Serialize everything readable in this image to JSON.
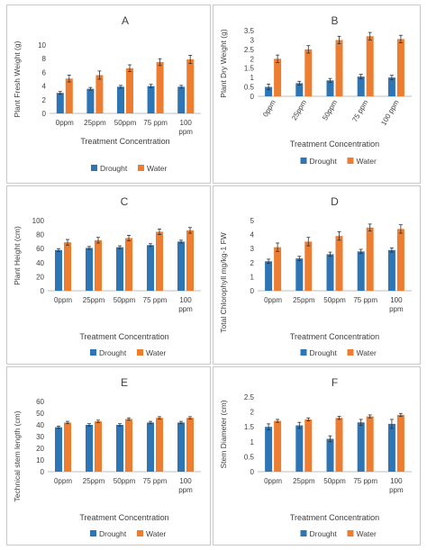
{
  "legend": {
    "drought_label": "Drought",
    "water_label": "Water"
  },
  "colors": {
    "drought": "#2E75B6",
    "water": "#ED7D31",
    "axis": "#bfbfbf",
    "text": "#404040"
  },
  "chart_data": [
    {
      "type": "bar",
      "title": "A",
      "categories": [
        "0ppm",
        "25ppm",
        "50ppm",
        "75 ppm",
        "100 ppm"
      ],
      "xlabel": "Treatment Concentration",
      "ylabel": "Plant Fresh Weight (g)",
      "ylim": [
        0,
        10
      ],
      "yticks": [
        0,
        2,
        4,
        6,
        8,
        10
      ],
      "grid": false,
      "legend_position": "bottom",
      "series": [
        {
          "name": "Drought",
          "values": [
            3.0,
            3.6,
            3.9,
            4.0,
            3.9
          ],
          "errors": [
            0.2,
            0.2,
            0.2,
            0.25,
            0.2
          ]
        },
        {
          "name": "Water",
          "values": [
            5.1,
            5.6,
            6.6,
            7.5,
            7.9
          ],
          "errors": [
            0.5,
            0.6,
            0.5,
            0.5,
            0.6
          ]
        }
      ]
    },
    {
      "type": "bar",
      "title": "B",
      "categories": [
        "0ppm",
        "25ppm",
        "50ppm",
        "75 ppm",
        "100 ppm"
      ],
      "xlabel": "Treatment Concentration",
      "ylabel": "Plant Dry Weight (g)",
      "ylim": [
        0,
        3.5
      ],
      "yticks": [
        0,
        0.5,
        1.0,
        1.5,
        2.0,
        2.5,
        3.0,
        3.5
      ],
      "grid": false,
      "legend_position": "bottom",
      "series": [
        {
          "name": "Drought",
          "values": [
            0.5,
            0.7,
            0.85,
            1.05,
            1.0
          ],
          "errors": [
            0.15,
            0.1,
            0.1,
            0.12,
            0.12
          ]
        },
        {
          "name": "Water",
          "values": [
            2.0,
            2.5,
            3.0,
            3.2,
            3.05
          ],
          "errors": [
            0.2,
            0.2,
            0.2,
            0.2,
            0.2
          ]
        }
      ]
    },
    {
      "type": "bar",
      "title": "C",
      "categories": [
        "0ppm",
        "25ppm",
        "50ppm",
        "75 ppm",
        "100 ppm"
      ],
      "xlabel": "Treatment Concentration",
      "ylabel": "Plant Height (cm)",
      "ylim": [
        0,
        100
      ],
      "yticks": [
        0,
        20,
        40,
        60,
        80,
        100
      ],
      "grid": false,
      "legend_position": "bottom",
      "series": [
        {
          "name": "Drought",
          "values": [
            58,
            61,
            62,
            65,
            70
          ],
          "errors": [
            2,
            2,
            2,
            2,
            2
          ]
        },
        {
          "name": "Water",
          "values": [
            69,
            72,
            75,
            84,
            86
          ],
          "errors": [
            4,
            4,
            4,
            4,
            4
          ]
        }
      ]
    },
    {
      "type": "bar",
      "title": "D",
      "categories": [
        "0ppm",
        "25ppm",
        "50ppm",
        "75 ppm",
        "100 ppm"
      ],
      "xlabel": "Treatment Concentration",
      "ylabel": "Total Chlorophyll mg/kg-1 FW",
      "ylim": [
        0,
        5
      ],
      "yticks": [
        0,
        1,
        2,
        3,
        4,
        5
      ],
      "grid": false,
      "legend_position": "bottom",
      "series": [
        {
          "name": "Drought",
          "values": [
            2.1,
            2.3,
            2.6,
            2.8,
            2.9
          ],
          "errors": [
            0.15,
            0.15,
            0.15,
            0.15,
            0.15
          ]
        },
        {
          "name": "Water",
          "values": [
            3.1,
            3.5,
            3.9,
            4.5,
            4.4
          ],
          "errors": [
            0.3,
            0.3,
            0.3,
            0.25,
            0.3
          ]
        }
      ]
    },
    {
      "type": "bar",
      "title": "E",
      "categories": [
        "0ppm",
        "25ppm",
        "50ppm",
        "75 ppm",
        "100 ppm"
      ],
      "xlabel": "Treatment Concentration",
      "ylabel": "Technical stem length (cm)",
      "ylim": [
        0,
        60
      ],
      "yticks": [
        0,
        10,
        20,
        30,
        40,
        50,
        60
      ],
      "grid": false,
      "legend_position": "bottom",
      "series": [
        {
          "name": "Drought",
          "values": [
            38,
            40,
            40,
            42,
            42
          ],
          "errors": [
            1,
            1,
            1,
            1,
            1
          ]
        },
        {
          "name": "Water",
          "values": [
            42,
            43,
            45,
            46,
            46
          ],
          "errors": [
            1,
            1,
            1,
            1,
            1
          ]
        }
      ]
    },
    {
      "type": "bar",
      "title": "F",
      "categories": [
        "0ppm",
        "25ppm",
        "50ppm",
        "75 ppm",
        "100 ppm"
      ],
      "xlabel": "Treatment Concentration",
      "ylabel": "Stem Diameter (cm)",
      "ylim": [
        0,
        2.5
      ],
      "yticks": [
        0,
        0.5,
        1.0,
        1.5,
        2.0,
        2.5
      ],
      "grid": false,
      "legend_position": "bottom",
      "series": [
        {
          "name": "Drought",
          "values": [
            1.5,
            1.55,
            1.1,
            1.65,
            1.6
          ],
          "errors": [
            0.1,
            0.1,
            0.1,
            0.1,
            0.15
          ]
        },
        {
          "name": "Water",
          "values": [
            1.7,
            1.75,
            1.8,
            1.85,
            1.9
          ],
          "errors": [
            0.05,
            0.05,
            0.05,
            0.05,
            0.05
          ]
        }
      ]
    }
  ]
}
